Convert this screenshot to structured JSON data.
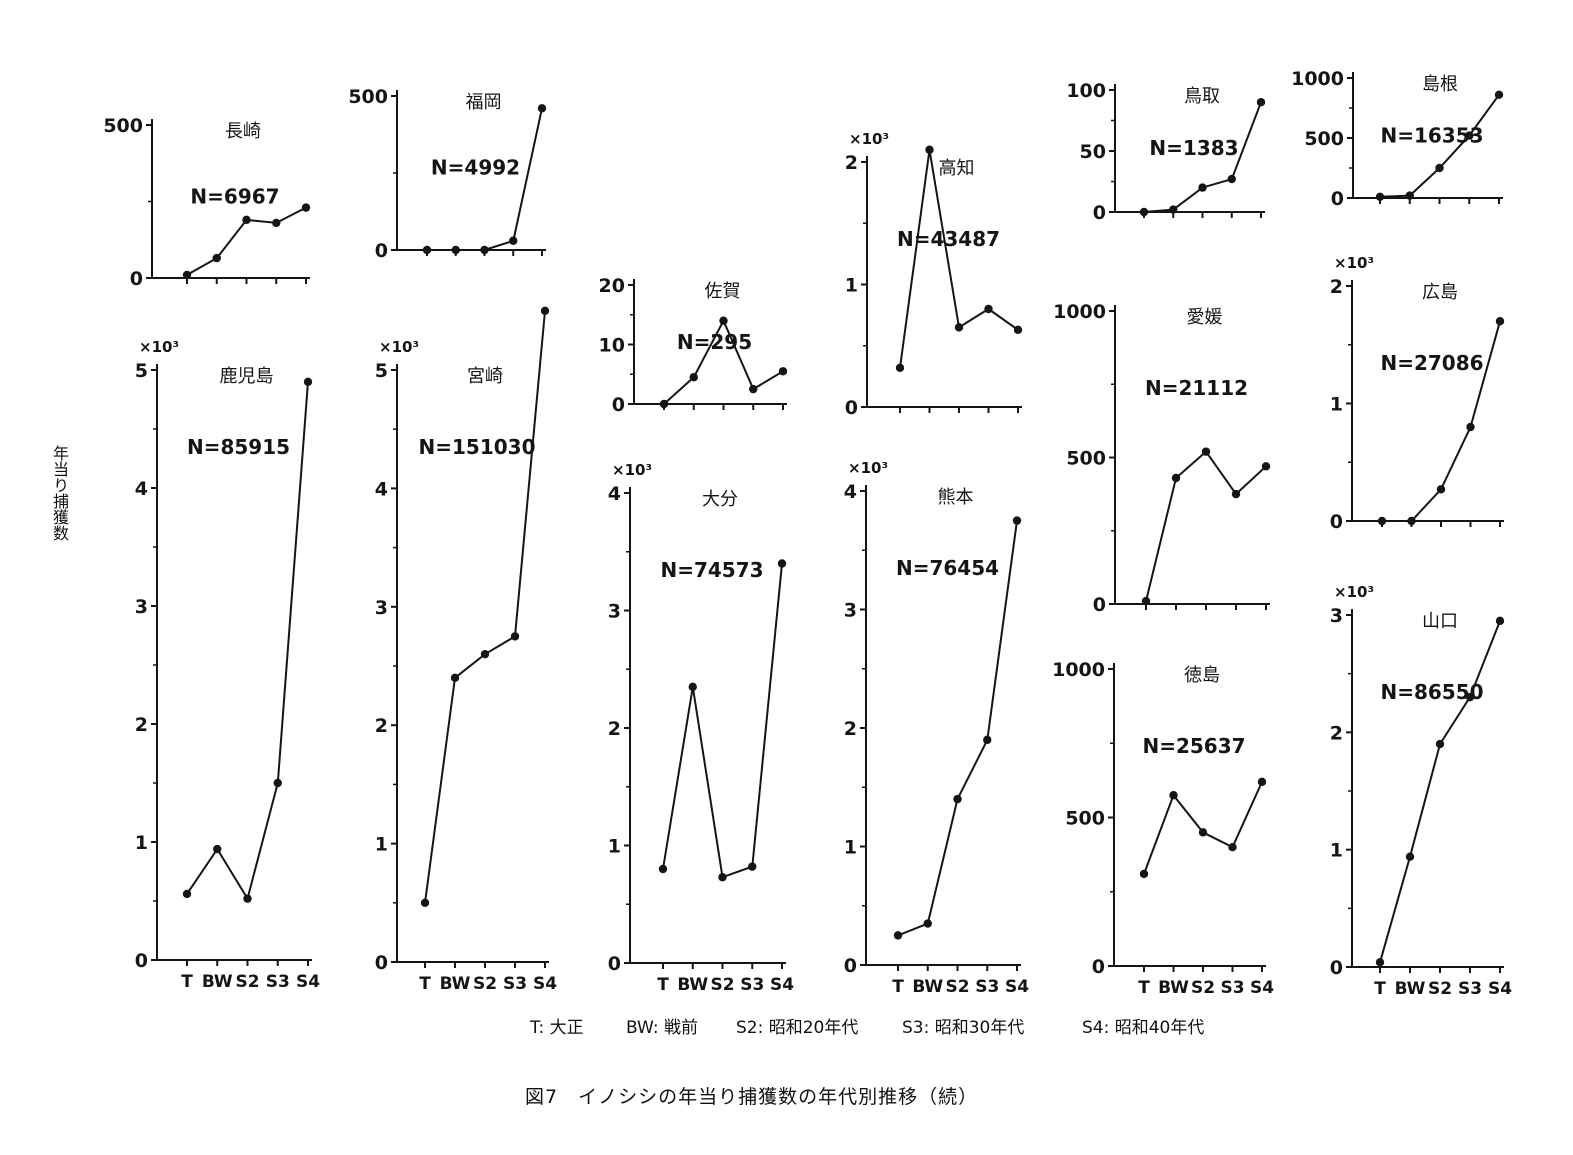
{
  "figure": {
    "ylabel": "年当り捕獲数",
    "caption": "図7　イノシシの年当り捕獲数の年代別推移（続）",
    "legend": [
      {
        "code": "T",
        "text": "T: 大正"
      },
      {
        "code": "BW",
        "text": "BW: 戦前"
      },
      {
        "code": "S2",
        "text": "S2: 昭和20年代"
      },
      {
        "code": "S3",
        "text": "S3: 昭和30年代"
      },
      {
        "code": "S4",
        "text": "S4: 昭和40年代"
      }
    ]
  },
  "chart_data": [
    {
      "type": "line",
      "title": "長崎",
      "n_label": "N=6967",
      "categories": [
        "T",
        "BW",
        "S2",
        "S3",
        "S4"
      ],
      "values": [
        10,
        65,
        190,
        180,
        230
      ],
      "ylim": [
        0,
        500
      ],
      "yticks": [
        0,
        500
      ],
      "multiplier": "",
      "show_xlabels": false
    },
    {
      "type": "line",
      "title": "福岡",
      "n_label": "N=4992",
      "categories": [
        "T",
        "BW",
        "S2",
        "S3",
        "S4"
      ],
      "values": [
        0,
        0,
        0,
        30,
        460
      ],
      "ylim": [
        0,
        500
      ],
      "yticks": [
        0,
        500
      ],
      "multiplier": "",
      "show_xlabels": false
    },
    {
      "type": "line",
      "title": "鹿児島",
      "n_label": "N=85915",
      "categories": [
        "T",
        "BW",
        "S2",
        "S3",
        "S4"
      ],
      "values": [
        0.56,
        0.94,
        0.52,
        1.5,
        4.9
      ],
      "ylim": [
        0,
        5
      ],
      "yticks": [
        0,
        1,
        2,
        3,
        4,
        5
      ],
      "multiplier": "×10³",
      "show_xlabels": true
    },
    {
      "type": "line",
      "title": "宮崎",
      "n_label": "N=151030",
      "categories": [
        "T",
        "BW",
        "S2",
        "S3",
        "S4"
      ],
      "values": [
        0.5,
        2.4,
        2.6,
        2.75,
        5.5
      ],
      "ylim": [
        0,
        5
      ],
      "yticks": [
        0,
        1,
        2,
        3,
        4,
        5
      ],
      "multiplier": "×10³",
      "show_xlabels": true
    },
    {
      "type": "line",
      "title": "佐賀",
      "n_label": "N=295",
      "categories": [
        "T",
        "BW",
        "S2",
        "S3",
        "S4"
      ],
      "values": [
        0,
        4.5,
        14,
        2.5,
        5.5
      ],
      "ylim": [
        0,
        20
      ],
      "yticks": [
        0,
        10,
        20
      ],
      "multiplier": "",
      "show_xlabels": false
    },
    {
      "type": "line",
      "title": "大分",
      "n_label": "N=74573",
      "categories": [
        "T",
        "BW",
        "S2",
        "S3",
        "S4"
      ],
      "values": [
        0.8,
        2.35,
        0.73,
        0.82,
        3.4
      ],
      "ylim": [
        0,
        4
      ],
      "yticks": [
        0,
        1,
        2,
        3,
        4
      ],
      "multiplier": "×10³",
      "show_xlabels": true
    },
    {
      "type": "line",
      "title": "高知",
      "n_label": "N=43487",
      "categories": [
        "T",
        "BW",
        "S2",
        "S3",
        "S4"
      ],
      "values": [
        0.32,
        2.1,
        0.65,
        0.8,
        0.63
      ],
      "ylim": [
        0,
        2
      ],
      "yticks": [
        0,
        1,
        2
      ],
      "multiplier": "×10³",
      "show_xlabels": false
    },
    {
      "type": "line",
      "title": "熊本",
      "n_label": "N=76454",
      "categories": [
        "T",
        "BW",
        "S2",
        "S3",
        "S4"
      ],
      "values": [
        0.25,
        0.35,
        1.4,
        1.9,
        3.75
      ],
      "ylim": [
        0,
        4
      ],
      "yticks": [
        0,
        1,
        2,
        3,
        4
      ],
      "multiplier": "×10³",
      "show_xlabels": true
    },
    {
      "type": "line",
      "title": "鳥取",
      "n_label": "N=1383",
      "categories": [
        "T",
        "BW",
        "S2",
        "S3",
        "S4"
      ],
      "values": [
        0,
        2,
        20,
        27,
        90
      ],
      "ylim": [
        0,
        100
      ],
      "yticks": [
        0,
        50,
        100
      ],
      "multiplier": "",
      "show_xlabels": false
    },
    {
      "type": "line",
      "title": "愛媛",
      "n_label": "N=21112",
      "categories": [
        "T",
        "BW",
        "S2",
        "S3",
        "S4"
      ],
      "values": [
        10,
        430,
        520,
        375,
        470
      ],
      "ylim": [
        0,
        1000
      ],
      "yticks": [
        0,
        500,
        1000
      ],
      "multiplier": "",
      "show_xlabels": false
    },
    {
      "type": "line",
      "title": "徳島",
      "n_label": "N=25637",
      "categories": [
        "T",
        "BW",
        "S2",
        "S3",
        "S4"
      ],
      "values": [
        310,
        575,
        450,
        400,
        620
      ],
      "ylim": [
        0,
        1000
      ],
      "yticks": [
        0,
        500,
        1000
      ],
      "multiplier": "",
      "show_xlabels": true
    },
    {
      "type": "line",
      "title": "島根",
      "n_label": "N=16353",
      "categories": [
        "T",
        "BW",
        "S2",
        "S3",
        "S4"
      ],
      "values": [
        10,
        20,
        250,
        520,
        860
      ],
      "ylim": [
        0,
        1000
      ],
      "yticks": [
        0,
        500,
        1000
      ],
      "multiplier": "",
      "show_xlabels": false
    },
    {
      "type": "line",
      "title": "広島",
      "n_label": "N=27086",
      "categories": [
        "T",
        "BW",
        "S2",
        "S3",
        "S4"
      ],
      "values": [
        0,
        0,
        0.27,
        0.8,
        1.7
      ],
      "ylim": [
        0,
        2
      ],
      "yticks": [
        0,
        1,
        2
      ],
      "multiplier": "×10³",
      "show_xlabels": false
    },
    {
      "type": "line",
      "title": "山口",
      "n_label": "N=86550",
      "categories": [
        "T",
        "BW",
        "S2",
        "S3",
        "S4"
      ],
      "values": [
        0.04,
        0.94,
        1.9,
        2.3,
        2.95
      ],
      "ylim": [
        0,
        3
      ],
      "yticks": [
        0,
        1,
        2,
        3
      ],
      "multiplier": "×10³",
      "show_xlabels": true
    }
  ]
}
